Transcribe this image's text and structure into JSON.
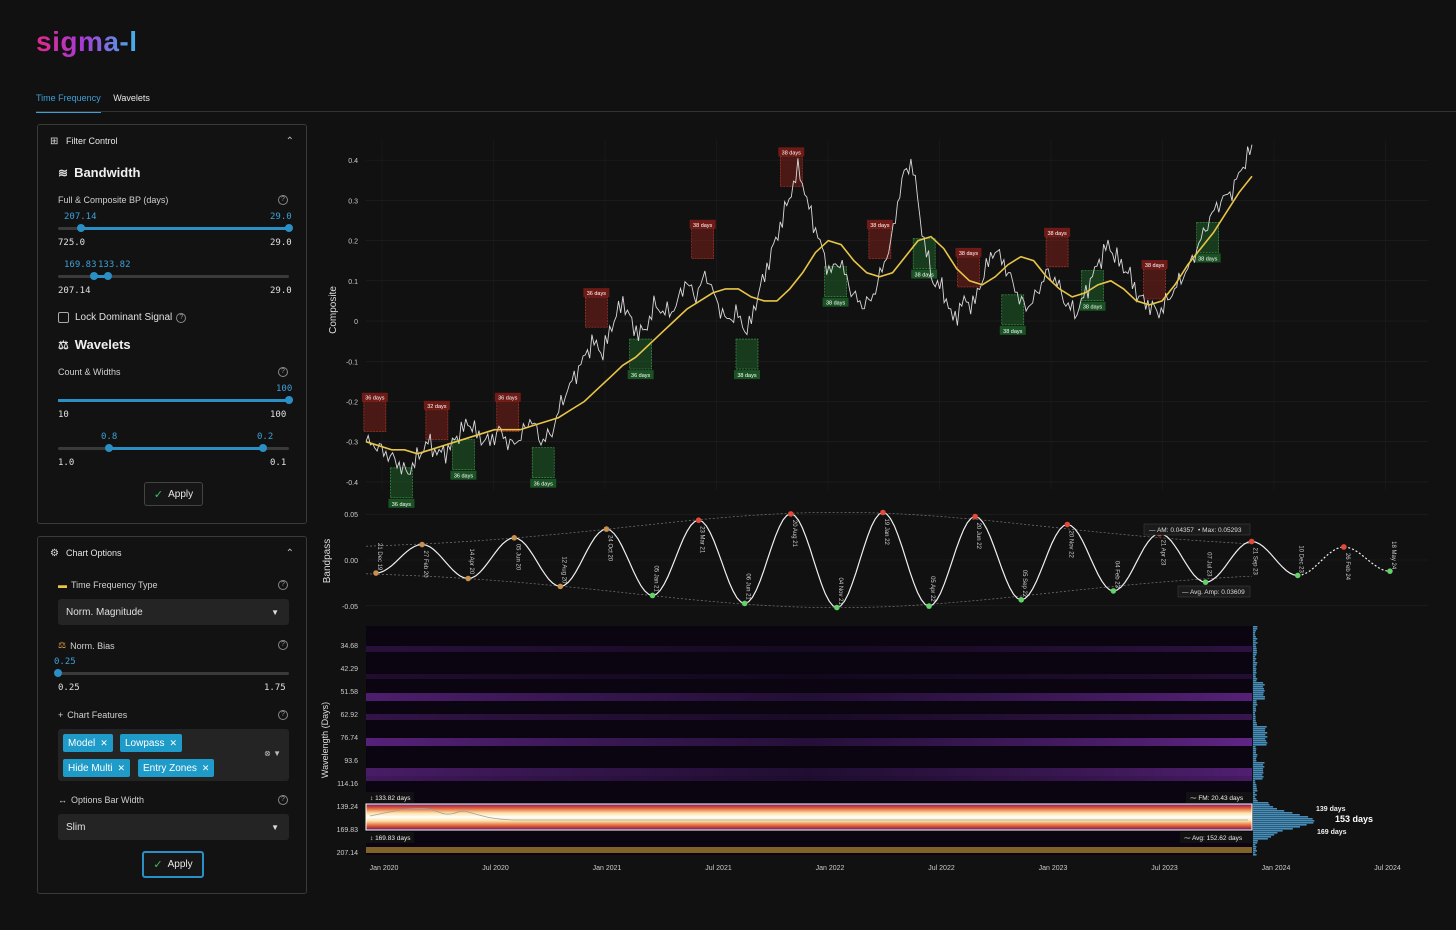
{
  "app": {
    "logo": "sigma-l"
  },
  "tabs": [
    {
      "label": "Time Frequency",
      "active": true
    },
    {
      "label": "Wavelets",
      "active": false
    }
  ],
  "filter_panel": {
    "title": "Filter Control",
    "bandwidth": {
      "title": "Bandwidth",
      "label": "Full & Composite BP (days)",
      "slider1": {
        "lo_val": "207.14",
        "hi_val": "29.0",
        "min": "725.0",
        "max": "29.0"
      },
      "slider2": {
        "lo_val": "169.83",
        "hi_val": "133.82",
        "min": "207.14",
        "max": "29.0"
      }
    },
    "lock_label": "Lock Dominant Signal",
    "wavelets": {
      "title": "Wavelets",
      "label": "Count & Widths",
      "slider1": {
        "val": "100",
        "min": "10",
        "max": "100"
      },
      "slider2": {
        "lo_val": "0.8",
        "hi_val": "0.2",
        "min": "1.0",
        "max": "0.1"
      }
    },
    "apply_label": "Apply"
  },
  "chart_options": {
    "title": "Chart Options",
    "tf_type_label": "Time Frequency Type",
    "tf_type_value": "Norm. Magnitude",
    "bias_label": "Norm. Bias",
    "bias": {
      "val": "0.25",
      "min": "0.25",
      "max": "1.75"
    },
    "features_label": "Chart Features",
    "features": [
      "Model",
      "Lowpass",
      "Hide Multi",
      "Entry Zones"
    ],
    "bar_width_label": "Options Bar Width",
    "bar_width_value": "Slim",
    "apply_label": "Apply"
  },
  "colors": {
    "accent": "#2a8fc4",
    "price": "#d9d9d9",
    "lowpass": "#e8c547",
    "peak": "#c0392b",
    "trough": "#2e8b3f"
  },
  "chart_data": [
    {
      "type": "line",
      "ylabel": "Composite",
      "yticks": [
        "0.4",
        "0.3",
        "0.2",
        "0.1",
        "0",
        "-0.1",
        "-0.2",
        "-0.3",
        "-0.4"
      ],
      "ylim": [
        -0.42,
        0.45
      ],
      "series": [
        {
          "values": [
            -0.3,
            -0.31,
            -0.33,
            -0.35,
            -0.38,
            -0.34,
            -0.3,
            -0.33,
            -0.32,
            -0.28,
            -0.25,
            -0.29,
            -0.3,
            -0.27,
            -0.31,
            -0.29,
            -0.24,
            -0.3,
            -0.28,
            -0.2,
            -0.15,
            -0.1,
            -0.05,
            -0.08,
            0.0,
            0.05,
            -0.02,
            -0.03,
            0.04,
            0.02,
            0.03,
            0.1,
            0.06,
            0.12,
            0.05,
            0.0,
            0.02,
            -0.03,
            0.06,
            0.14,
            0.22,
            0.3,
            0.38,
            0.28,
            0.2,
            0.12,
            0.15,
            0.08,
            0.04,
            0.05,
            0.12,
            0.2,
            0.35,
            0.4,
            0.22,
            0.1,
            0.08,
            0.0,
            0.05,
            0.04,
            0.12,
            0.18,
            0.14,
            0.08,
            0.03,
            0.06,
            0.12,
            0.1,
            0.04,
            0.02,
            0.08,
            0.14,
            0.19,
            0.15,
            0.12,
            0.06,
            0.04,
            0.02,
            0.06,
            0.1,
            0.14,
            0.2,
            0.26,
            0.3,
            0.32,
            0.38,
            0.43
          ]
        },
        {
          "values": [
            -0.3,
            -0.31,
            -0.32,
            -0.32,
            -0.33,
            -0.32,
            -0.31,
            -0.3,
            -0.29,
            -0.28,
            -0.27,
            -0.27,
            -0.27,
            -0.26,
            -0.25,
            -0.24,
            -0.22,
            -0.2,
            -0.17,
            -0.14,
            -0.11,
            -0.09,
            -0.06,
            -0.03,
            0.0,
            0.03,
            0.05,
            0.07,
            0.08,
            0.08,
            0.06,
            0.05,
            0.05,
            0.08,
            0.12,
            0.17,
            0.2,
            0.19,
            0.15,
            0.12,
            0.11,
            0.12,
            0.16,
            0.2,
            0.21,
            0.18,
            0.13,
            0.1,
            0.09,
            0.11,
            0.14,
            0.16,
            0.15,
            0.11,
            0.08,
            0.06,
            0.07,
            0.09,
            0.1,
            0.08,
            0.05,
            0.04,
            0.05,
            0.09,
            0.14,
            0.18,
            0.22,
            0.27,
            0.32,
            0.36
          ]
        }
      ],
      "markers": [
        {
          "label": "36 days",
          "kind": "peak"
        },
        {
          "label": "36 days",
          "kind": "trough"
        },
        {
          "label": "32 days",
          "kind": "peak"
        },
        {
          "label": "36 days",
          "kind": "trough"
        },
        {
          "label": "36 days",
          "kind": "peak"
        },
        {
          "label": "36 days",
          "kind": "trough"
        },
        {
          "label": "36 days",
          "kind": "peak"
        },
        {
          "label": "36 days",
          "kind": "trough"
        },
        {
          "label": "38 days",
          "kind": "peak"
        },
        {
          "label": "38 days",
          "kind": "trough"
        },
        {
          "label": "38 days",
          "kind": "peak"
        },
        {
          "label": "38 days",
          "kind": "trough"
        },
        {
          "label": "38 days",
          "kind": "peak"
        },
        {
          "label": "38 days",
          "kind": "trough"
        },
        {
          "label": "38 days",
          "kind": "peak"
        },
        {
          "label": "38 days",
          "kind": "trough"
        },
        {
          "label": "38 days",
          "kind": "peak"
        },
        {
          "label": "38 days",
          "kind": "trough"
        },
        {
          "label": "38 days",
          "kind": "peak"
        },
        {
          "label": "38 days",
          "kind": "trough"
        }
      ]
    },
    {
      "type": "line",
      "ylabel": "Bandpass",
      "yticks": [
        "0.05",
        "0.00",
        "-0.05"
      ],
      "ylim": [
        -0.06,
        0.06
      ],
      "annotations": {
        "am": "AM: 0.04357",
        "max": "Max: 0.05293",
        "avg_amp": "Avg. Amp: 0.03609"
      },
      "turning_points": [
        {
          "date": "21 Dec 19",
          "type": "trough"
        },
        {
          "date": "27 Feb 20",
          "type": "peak"
        },
        {
          "date": "14 Apr 20",
          "type": "trough"
        },
        {
          "date": "05 Jun 20",
          "type": "peak"
        },
        {
          "date": "12 Aug 20",
          "type": "trough"
        },
        {
          "date": "24 Oct 20",
          "type": "peak"
        },
        {
          "date": "05 Jan 21",
          "type": "trough"
        },
        {
          "date": "23 Mar 21",
          "type": "peak"
        },
        {
          "date": "06 Jun 21",
          "type": "trough"
        },
        {
          "date": "20 Aug 21",
          "type": "peak"
        },
        {
          "date": "04 Nov 21",
          "type": "trough"
        },
        {
          "date": "19 Jan 22",
          "type": "peak"
        },
        {
          "date": "05 Apr 22",
          "type": "trough"
        },
        {
          "date": "20 Jun 22",
          "type": "peak"
        },
        {
          "date": "05 Sep 22",
          "type": "trough"
        },
        {
          "date": "20 Nov 22",
          "type": "peak"
        },
        {
          "date": "04 Feb 23",
          "type": "trough"
        },
        {
          "date": "21 Apr 23",
          "type": "peak"
        },
        {
          "date": "07 Jul 23",
          "type": "trough"
        },
        {
          "date": "21 Sep 23",
          "type": "peak"
        },
        {
          "date": "10 Dec 23",
          "type": "trough"
        },
        {
          "date": "26 Feb 24",
          "type": "peak"
        },
        {
          "date": "18 May 24",
          "type": "trough"
        }
      ]
    },
    {
      "type": "heatmap",
      "ylabel": "Wavelength (Days)",
      "yticks": [
        "34.68",
        "42.29",
        "51.58",
        "62.92",
        "76.74",
        "93.6",
        "114.16",
        "139.24",
        "169.83",
        "207.14"
      ],
      "xticks": [
        "Jan 2020",
        "Jul 2020",
        "Jan 2021",
        "Jul 2021",
        "Jan 2022",
        "Jul 2022",
        "Jan 2023",
        "Jul 2023",
        "Jan 2024",
        "Jul 2024"
      ],
      "band_upper_label": "133.82 days",
      "band_lower_label": "169.83 days",
      "fm_label": "FM: 20.43 days",
      "avg_label": "Avg: 152.62 days",
      "histogram_labels": {
        "upper": "139 days",
        "center": "153 days",
        "lower": "169 days"
      }
    }
  ]
}
